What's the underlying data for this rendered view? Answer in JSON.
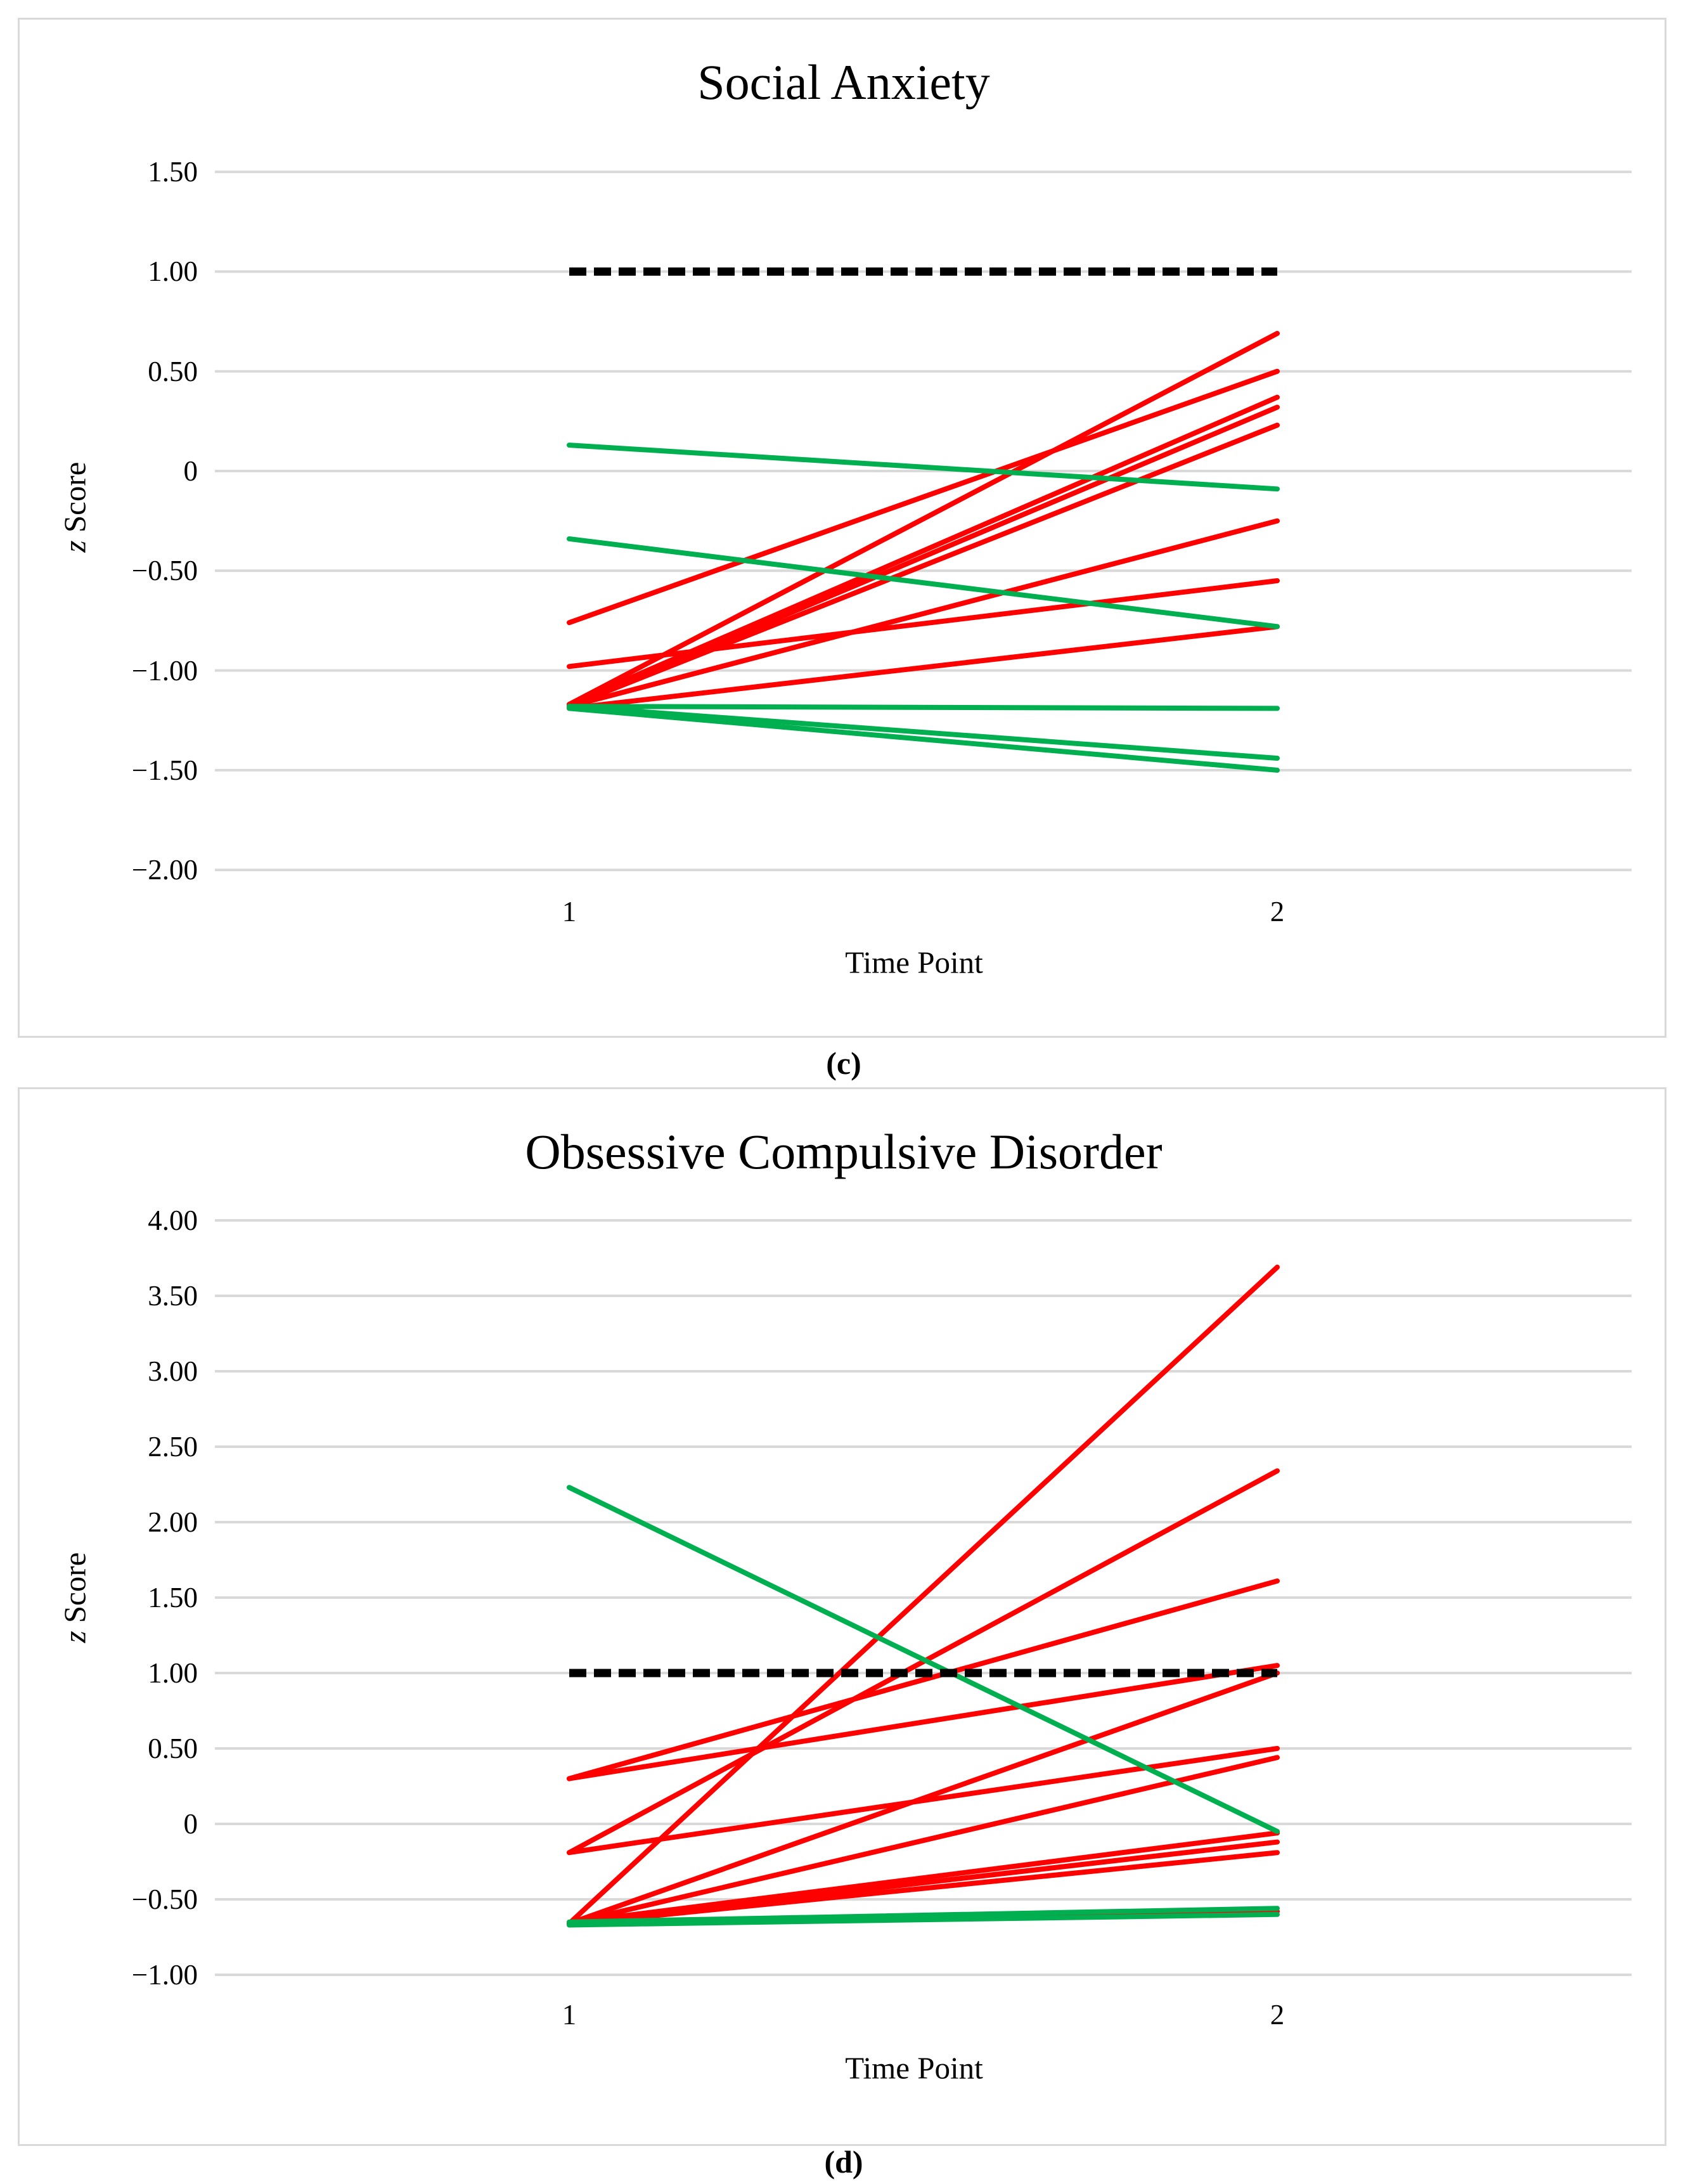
{
  "figure": {
    "caption_c": "(c)",
    "caption_d": "(d)"
  },
  "colors": {
    "deteriorated_line": "#ff0000",
    "improved_line": "#00b050",
    "threshold_line": "#000000",
    "gridline": "#d9d9d9",
    "panel_border": "#d9d9d9",
    "text": "#000000"
  },
  "chart_data": [
    {
      "type": "line",
      "title": "Social Anxiety",
      "xlabel": "Time Point",
      "ylabel": "z Score",
      "ylabel_italic": "z",
      "ylabel_rest": " Score",
      "categories": [
        "1",
        "2"
      ],
      "x": [
        1,
        2
      ],
      "ylim": [
        -2.0,
        1.5
      ],
      "ytick_values": [
        1.5,
        1.0,
        0.5,
        0,
        -0.5,
        -1.0,
        -1.5,
        -2.0
      ],
      "ytick_labels": [
        "1.50",
        "1.00",
        "0.50",
        "0",
        "−0.50",
        "−1.00",
        "−1.50",
        "−2.00"
      ],
      "grid": true,
      "legend": "none",
      "threshold": {
        "value": 1.0,
        "style": "dashed",
        "color": "#000000"
      },
      "series": [
        {
          "color": "red",
          "values": [
            -1.17,
            0.69
          ]
        },
        {
          "color": "red",
          "values": [
            -0.76,
            0.5
          ]
        },
        {
          "color": "red",
          "values": [
            -1.17,
            0.37
          ]
        },
        {
          "color": "red",
          "values": [
            -1.18,
            0.32
          ]
        },
        {
          "color": "red",
          "values": [
            -1.18,
            0.23
          ]
        },
        {
          "color": "red",
          "values": [
            -1.18,
            -0.25
          ]
        },
        {
          "color": "red",
          "values": [
            -0.98,
            -0.55
          ]
        },
        {
          "color": "red",
          "values": [
            -1.19,
            -0.78
          ]
        },
        {
          "color": "green",
          "values": [
            0.13,
            -0.09
          ]
        },
        {
          "color": "green",
          "values": [
            -0.34,
            -0.78
          ]
        },
        {
          "color": "green",
          "values": [
            -1.18,
            -1.19
          ]
        },
        {
          "color": "green",
          "values": [
            -1.18,
            -1.44
          ]
        },
        {
          "color": "green",
          "values": [
            -1.19,
            -1.5
          ]
        }
      ]
    },
    {
      "type": "line",
      "title": "Obsessive Compulsive Disorder",
      "xlabel": "Time Point",
      "ylabel": "z Score",
      "ylabel_italic": "z",
      "ylabel_rest": " Score",
      "categories": [
        "1",
        "2"
      ],
      "x": [
        1,
        2
      ],
      "ylim": [
        -1.0,
        4.0
      ],
      "ytick_values": [
        4.0,
        3.5,
        3.0,
        2.5,
        2.0,
        1.5,
        1.0,
        0.5,
        0,
        -0.5,
        -1.0
      ],
      "ytick_labels": [
        "4.00",
        "3.50",
        "3.00",
        "2.50",
        "2.00",
        "1.50",
        "1.00",
        "0.50",
        "0",
        "−0.50",
        "−1.00"
      ],
      "grid": true,
      "legend": "none",
      "threshold": {
        "value": 1.0,
        "style": "dashed",
        "color": "#000000"
      },
      "series": [
        {
          "color": "red",
          "values": [
            -0.66,
            3.69
          ]
        },
        {
          "color": "red",
          "values": [
            -0.19,
            2.34
          ]
        },
        {
          "color": "red",
          "values": [
            0.3,
            1.61
          ]
        },
        {
          "color": "red",
          "values": [
            0.3,
            1.05
          ]
        },
        {
          "color": "red",
          "values": [
            -0.66,
            1.0
          ]
        },
        {
          "color": "red",
          "values": [
            -0.19,
            0.5
          ]
        },
        {
          "color": "red",
          "values": [
            -0.66,
            0.44
          ]
        },
        {
          "color": "red",
          "values": [
            -0.655,
            -0.06
          ]
        },
        {
          "color": "red",
          "values": [
            -0.66,
            -0.12
          ]
        },
        {
          "color": "red",
          "values": [
            -0.665,
            -0.19
          ]
        },
        {
          "color": "red",
          "values": [
            -0.66,
            -0.58
          ]
        },
        {
          "color": "green",
          "values": [
            2.23,
            -0.05
          ]
        },
        {
          "color": "green",
          "values": [
            -0.65,
            -0.56
          ]
        },
        {
          "color": "green",
          "values": [
            -0.67,
            -0.6
          ]
        }
      ]
    }
  ]
}
